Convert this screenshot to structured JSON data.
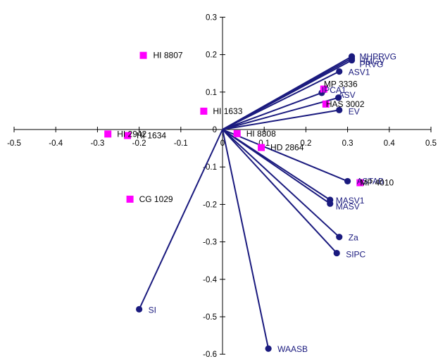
{
  "chart_data": {
    "type": "scatter",
    "title": "",
    "xlabel": "",
    "ylabel": "",
    "xlim": [
      -0.5,
      0.5
    ],
    "ylim": [
      -0.6,
      0.3
    ],
    "x_ticks": [
      -0.5,
      -0.4,
      -0.3,
      -0.2,
      -0.1,
      0,
      0.1,
      0.2,
      0.3,
      0.4,
      0.5
    ],
    "y_ticks": [
      0.3,
      0.2,
      0.1,
      0,
      -0.1,
      -0.2,
      -0.3,
      -0.4,
      -0.5,
      -0.6
    ],
    "x_tick_labels": [
      "-0.5",
      "-0.4",
      "-0.3",
      "-0.2",
      "-0.1",
      "0",
      "0.1",
      "0.2",
      "0.3",
      "0.4",
      "0.5"
    ],
    "y_tick_labels": [
      "0.3",
      "0.2",
      "0.1",
      "0",
      "-0.1",
      "-0.2",
      "-0.3",
      "-0.4",
      "-0.5",
      "-0.6"
    ],
    "grid": false,
    "legend": "none",
    "colors": {
      "genotype_marker": "#ff00ff",
      "genotype_label": "#000000",
      "variable_vector": "#1a1a7e",
      "variable_label": "#1a1a7e",
      "axis": "#000000"
    },
    "genotypes": [
      {
        "label": "HI 8807",
        "x": -0.19,
        "y": 0.198
      },
      {
        "label": "HI 1633",
        "x": -0.045,
        "y": 0.049
      },
      {
        "label": "HI 2942",
        "x": -0.275,
        "y": -0.012
      },
      {
        "label": "HI 1634",
        "x": -0.228,
        "y": -0.016
      },
      {
        "label": "CG 1029",
        "x": -0.222,
        "y": -0.186
      },
      {
        "label": "HI 8808",
        "x": 0.035,
        "y": -0.011
      },
      {
        "label": "HD 2864",
        "x": 0.093,
        "y": -0.048
      },
      {
        "label": "MP 3336",
        "x": 0.243,
        "y": 0.108
      },
      {
        "label": "HAS 3002",
        "x": 0.248,
        "y": 0.068
      },
      {
        "label": "MP 4010",
        "x": 0.33,
        "y": -0.142
      }
    ],
    "variables": [
      {
        "label": "MHPRVG",
        "x": 0.31,
        "y": 0.195
      },
      {
        "label": "HMGV",
        "x": 0.31,
        "y": 0.19
      },
      {
        "label": "PRVG",
        "x": 0.31,
        "y": 0.185
      },
      {
        "label": "ASV1",
        "x": 0.28,
        "y": 0.155
      },
      {
        "label": "IPCA1",
        "x": 0.238,
        "y": 0.098
      },
      {
        "label": "ASV",
        "x": 0.278,
        "y": 0.085
      },
      {
        "label": "EV",
        "x": 0.28,
        "y": 0.052
      },
      {
        "label": "ASTAB",
        "x": 0.3,
        "y": -0.138
      },
      {
        "label": "MASV1",
        "x": 0.258,
        "y": -0.188
      },
      {
        "label": "MASV",
        "x": 0.258,
        "y": -0.198
      },
      {
        "label": "Za",
        "x": 0.28,
        "y": -0.287
      },
      {
        "label": "SIPC",
        "x": 0.274,
        "y": -0.33
      },
      {
        "label": "SI",
        "x": -0.2,
        "y": -0.48
      },
      {
        "label": "WAASB",
        "x": 0.11,
        "y": -0.585
      }
    ]
  }
}
